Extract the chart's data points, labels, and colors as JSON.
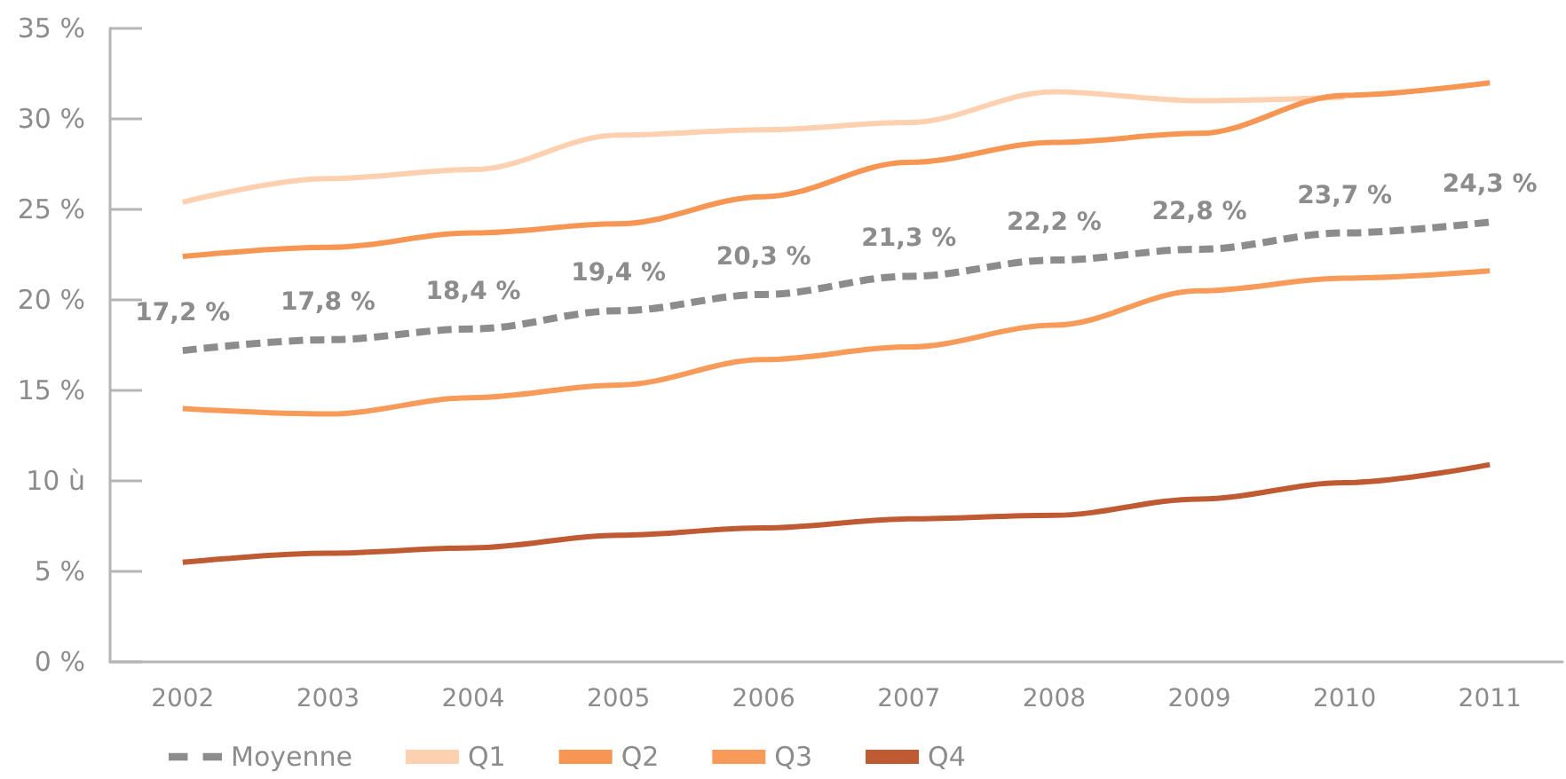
{
  "chart_data": {
    "type": "line",
    "categories": [
      "2002",
      "2003",
      "2004",
      "2005",
      "2006",
      "2007",
      "2008",
      "2009",
      "2010",
      "2011"
    ],
    "series": [
      {
        "name": "Moyenne",
        "color": "#8c8c8c",
        "line_style": "dashed",
        "values": [
          17.2,
          17.8,
          18.4,
          19.4,
          20.3,
          21.3,
          22.2,
          22.8,
          23.7,
          24.3
        ],
        "value_labels": [
          "17,2 %",
          "17,8 %",
          "18,4 %",
          "19,4 %",
          "20,3 %",
          "21,3 %",
          "22,2 %",
          "22,8 %",
          "23,7 %",
          "24,3 %"
        ]
      },
      {
        "name": "Q1",
        "color": "#fdd0b0",
        "line_style": "solid",
        "values": [
          25.4,
          26.7,
          27.2,
          29.1,
          29.4,
          29.8,
          31.5,
          31.0,
          31.2,
          null
        ]
      },
      {
        "name": "Q2",
        "color": "#f79552",
        "line_style": "solid",
        "values": [
          22.4,
          22.9,
          23.7,
          24.2,
          25.7,
          27.6,
          28.7,
          29.2,
          31.3,
          32.0
        ]
      },
      {
        "name": "Q3",
        "color": "#f89a58",
        "line_style": "solid",
        "values": [
          14.0,
          13.7,
          14.6,
          15.3,
          16.7,
          17.4,
          18.6,
          20.5,
          21.2,
          21.6
        ]
      },
      {
        "name": "Q4",
        "color": "#c05a32",
        "line_style": "solid",
        "values": [
          5.5,
          6.0,
          6.3,
          7.0,
          7.4,
          7.9,
          8.1,
          9.0,
          9.9,
          10.9
        ]
      }
    ],
    "ylim": [
      0,
      35
    ],
    "yticks": [
      {
        "value": 0,
        "label": "0 %"
      },
      {
        "value": 5,
        "label": "5 %"
      },
      {
        "value": 10,
        "label": "10 ù"
      },
      {
        "value": 15,
        "label": "15 %"
      },
      {
        "value": 20,
        "label": "20 %"
      },
      {
        "value": 25,
        "label": "25 %"
      },
      {
        "value": 30,
        "label": "30 %"
      },
      {
        "value": 35,
        "label": "35 %"
      }
    ],
    "grid": false,
    "legend": "bottom left",
    "marker": "none"
  }
}
